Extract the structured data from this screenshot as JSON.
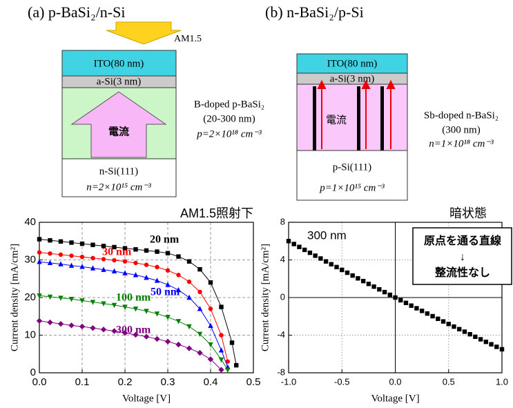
{
  "diagram_a": {
    "title": "(a) p-BaSi₂/n-Si",
    "light": "AM1.5",
    "layers": [
      "ITO(80 nm)",
      "a-Si(3 nm)",
      "電流",
      "n-Si(111)",
      "n=2×10¹⁵ cm⁻³"
    ],
    "label_lines": [
      "B-doped p-BaSi₂",
      "(20-300 nm)",
      "p=2×10¹⁸ cm⁻³"
    ]
  },
  "diagram_b": {
    "title": "(b) n-BaSi₂/p-Si",
    "layers": [
      "ITO(80 nm)",
      "a-Si(3 nm)",
      "電流",
      "p-Si(111)",
      "p=1×10¹⁵ cm⁻³"
    ],
    "label_lines": [
      "Sb-doped n-BaSi₂",
      "(300 nm)",
      "n=1×10¹⁸ cm⁻³"
    ]
  },
  "chart_data": [
    {
      "type": "line",
      "title": "AM1.5照射下",
      "xlabel": "Voltage [V]",
      "ylabel": "Current density [mA/cm²]",
      "xlim": [
        0,
        0.5
      ],
      "ylim": [
        0,
        40
      ],
      "xticks": [
        {
          "value": 0,
          "label": "0.0"
        },
        {
          "value": 0.1,
          "label": "0.1"
        },
        {
          "value": 0.2,
          "label": "0.2"
        },
        {
          "value": 0.3,
          "label": "0.3"
        },
        {
          "value": 0.4,
          "label": "0.4"
        },
        {
          "value": 0.5,
          "label": "0.5"
        }
      ],
      "yticks": [
        0,
        10,
        20,
        30,
        40
      ],
      "grid": true,
      "grid_style": "dashed",
      "series": [
        {
          "name": "20 nm",
          "color": "#000000",
          "marker": "square",
          "x": [
            0,
            0.025,
            0.05,
            0.075,
            0.1,
            0.125,
            0.15,
            0.175,
            0.2,
            0.225,
            0.25,
            0.275,
            0.3,
            0.325,
            0.35,
            0.375,
            0.4,
            0.425,
            0.45,
            0.46
          ],
          "values": [
            35.5,
            35.2,
            34.9,
            34.6,
            34.3,
            34.0,
            33.7,
            33.4,
            33.1,
            32.8,
            32.5,
            32.2,
            31.8,
            30.9,
            29.6,
            27.5,
            24.0,
            17.5,
            8.0,
            2.0
          ]
        },
        {
          "name": "30 nm",
          "color": "#ff0000",
          "marker": "circle",
          "x": [
            0,
            0.025,
            0.05,
            0.075,
            0.1,
            0.125,
            0.15,
            0.175,
            0.2,
            0.225,
            0.25,
            0.275,
            0.3,
            0.325,
            0.35,
            0.375,
            0.4,
            0.425,
            0.44
          ],
          "values": [
            32.0,
            31.7,
            31.4,
            31.1,
            30.8,
            30.5,
            30.2,
            29.9,
            29.6,
            29.2,
            28.7,
            28.1,
            27.2,
            26.0,
            24.2,
            21.5,
            17.0,
            10.0,
            3.0
          ]
        },
        {
          "name": "50 nm",
          "color": "#0000ff",
          "marker": "triangle-up",
          "x": [
            0,
            0.025,
            0.05,
            0.075,
            0.1,
            0.125,
            0.15,
            0.175,
            0.2,
            0.225,
            0.25,
            0.275,
            0.3,
            0.325,
            0.35,
            0.375,
            0.4,
            0.425,
            0.44
          ],
          "values": [
            29.5,
            29.2,
            28.9,
            28.5,
            28.2,
            27.8,
            27.4,
            27.0,
            26.5,
            26.0,
            25.3,
            24.5,
            23.4,
            22.0,
            20.0,
            17.0,
            12.5,
            6.0,
            1.5
          ]
        },
        {
          "name": "100 nm",
          "color": "#008000",
          "marker": "triangle-down",
          "x": [
            0,
            0.025,
            0.05,
            0.075,
            0.1,
            0.125,
            0.15,
            0.175,
            0.2,
            0.225,
            0.25,
            0.275,
            0.3,
            0.325,
            0.35,
            0.375,
            0.4,
            0.425,
            0.44
          ],
          "values": [
            20.5,
            20.2,
            19.9,
            19.6,
            19.2,
            18.8,
            18.4,
            18.0,
            17.5,
            17.0,
            16.4,
            15.7,
            14.8,
            13.7,
            12.3,
            10.3,
            7.5,
            3.5,
            0.8
          ]
        },
        {
          "name": "300 nm",
          "color": "#800080",
          "marker": "diamond",
          "x": [
            0,
            0.025,
            0.05,
            0.075,
            0.1,
            0.125,
            0.15,
            0.175,
            0.2,
            0.225,
            0.25,
            0.275,
            0.3,
            0.325,
            0.35,
            0.375,
            0.4,
            0.425
          ],
          "values": [
            13.8,
            13.4,
            13.0,
            12.6,
            12.3,
            11.9,
            11.5,
            11.1,
            10.6,
            10.1,
            9.6,
            9.0,
            8.3,
            7.5,
            6.5,
            5.3,
            3.6,
            0.8
          ]
        }
      ]
    },
    {
      "type": "scatter",
      "title": "暗状態",
      "xlabel": "Voltage [V]",
      "ylabel": "Current density [mA/cm²]",
      "annotation": [
        "原点を通る直線",
        "↓",
        "整流性なし"
      ],
      "xlim": [
        -1,
        1
      ],
      "ylim": [
        -8,
        8
      ],
      "xticks": [
        {
          "value": -1,
          "label": "-1.0"
        },
        {
          "value": -0.5,
          "label": "-0.5"
        },
        {
          "value": 0,
          "label": "0.0"
        },
        {
          "value": 0.5,
          "label": "0.5"
        },
        {
          "value": 1,
          "label": "1.0"
        }
      ],
      "yticks": [
        -8,
        -4,
        0,
        4,
        8
      ],
      "grid": true,
      "grid_style": "dotted",
      "zero_lines": true,
      "series": [
        {
          "name": "300 nm",
          "color": "#000000",
          "marker": "square",
          "x": [
            -1,
            -0.95,
            -0.9,
            -0.85,
            -0.8,
            -0.75,
            -0.7,
            -0.65,
            -0.6,
            -0.55,
            -0.5,
            -0.45,
            -0.4,
            -0.35,
            -0.3,
            -0.25,
            -0.2,
            -0.15,
            -0.1,
            -0.05,
            0,
            0.05,
            0.1,
            0.15,
            0.2,
            0.25,
            0.3,
            0.35,
            0.4,
            0.45,
            0.5,
            0.55,
            0.6,
            0.65,
            0.7,
            0.75,
            0.8,
            0.85,
            0.9,
            0.95,
            1
          ],
          "values": [
            6.0,
            5.69,
            5.38,
            5.07,
            4.76,
            4.45,
            4.15,
            3.84,
            3.54,
            3.24,
            2.94,
            2.64,
            2.34,
            2.04,
            1.75,
            1.45,
            1.16,
            0.87,
            0.58,
            0.29,
            0,
            -0.29,
            -0.57,
            -0.86,
            -1.14,
            -1.42,
            -1.7,
            -1.98,
            -2.26,
            -2.54,
            -2.81,
            -3.09,
            -3.36,
            -3.63,
            -3.9,
            -4.17,
            -4.44,
            -4.71,
            -4.97,
            -5.24,
            -5.5
          ]
        }
      ]
    }
  ]
}
